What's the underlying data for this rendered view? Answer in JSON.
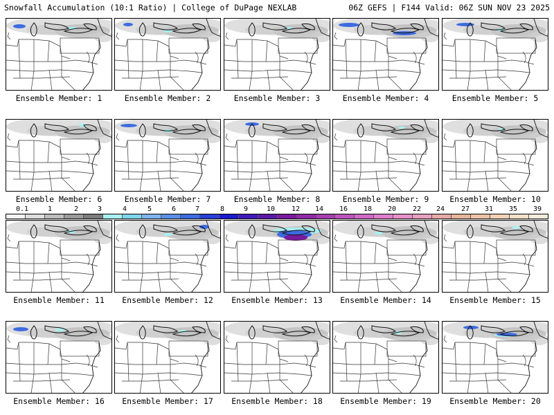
{
  "header": {
    "left": "Snowfall Accumulation (10:1 Ratio) | College of DuPage NEXLAB",
    "right": "06Z GEFS | F144 Valid: 06Z SUN NOV 23 2025"
  },
  "legend": {
    "labels": [
      "0.1",
      "1",
      "2",
      "3",
      "4",
      "5",
      "6",
      "7",
      "8",
      "9",
      "10",
      "12",
      "14",
      "16",
      "18",
      "20",
      "22",
      "24",
      "27",
      "31",
      "35",
      "39"
    ],
    "colors": [
      "#f2f2f2",
      "#dcdcdc",
      "#bdbdbd",
      "#9a9a9a",
      "#7d7d7d",
      "#a9f0f0",
      "#7fd6ea",
      "#7fb3ef",
      "#5a8fe8",
      "#3d6be0",
      "#2740d6",
      "#1a1ad0",
      "#3f1ab8",
      "#5a18a8",
      "#7a1a9e",
      "#8e2aa6",
      "#a53eb0",
      "#bd54bc",
      "#cf68c6",
      "#de7fcc",
      "#e690c8",
      "#e6a0be",
      "#e6a9a6",
      "#e6b49a",
      "#ecc2a6",
      "#f2d2b6",
      "#f6e0c8",
      "#f9ecdc"
    ]
  },
  "members": [
    {
      "label": "Ensemble Member: 1"
    },
    {
      "label": "Ensemble Member: 2"
    },
    {
      "label": "Ensemble Member: 3"
    },
    {
      "label": "Ensemble Member: 4"
    },
    {
      "label": "Ensemble Member: 5"
    },
    {
      "label": "Ensemble Member: 6"
    },
    {
      "label": "Ensemble Member: 7"
    },
    {
      "label": "Ensemble Member: 8"
    },
    {
      "label": "Ensemble Member: 9"
    },
    {
      "label": "Ensemble Member: 10"
    },
    {
      "label": "Ensemble Member: 11"
    },
    {
      "label": "Ensemble Member: 12"
    },
    {
      "label": "Ensemble Member: 13"
    },
    {
      "label": "Ensemble Member: 14"
    },
    {
      "label": "Ensemble Member: 15"
    },
    {
      "label": "Ensemble Member: 16"
    },
    {
      "label": "Ensemble Member: 17"
    },
    {
      "label": "Ensemble Member: 18"
    },
    {
      "label": "Ensemble Member: 19"
    },
    {
      "label": "Ensemble Member: 20"
    }
  ]
}
